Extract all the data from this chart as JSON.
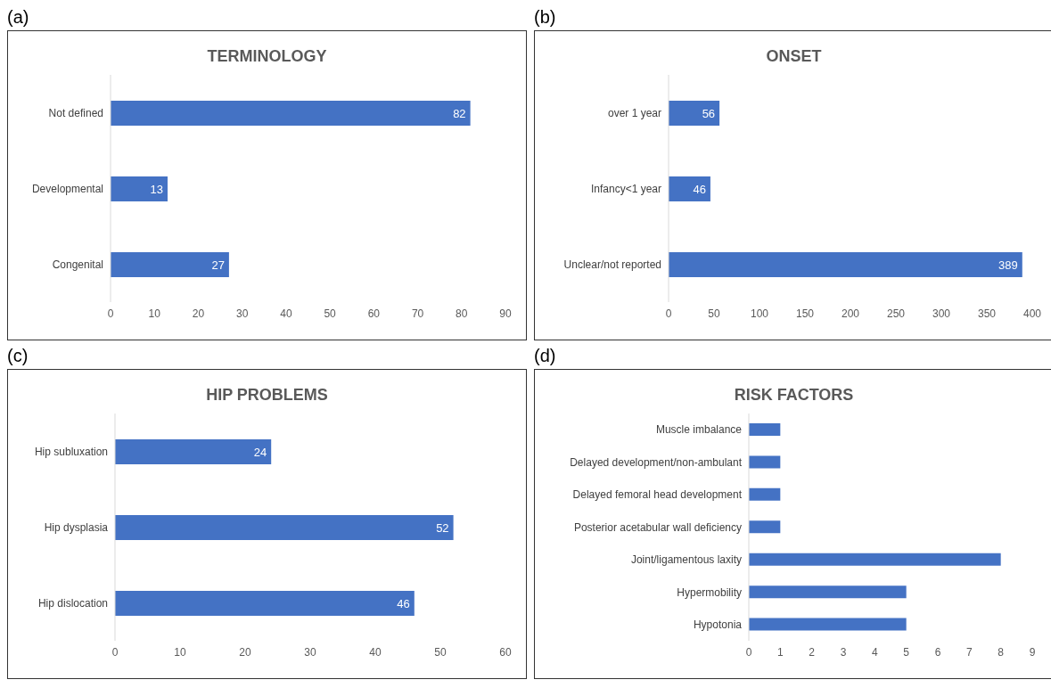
{
  "chart_data": [
    {
      "type": "bar",
      "orientation": "horizontal",
      "title": "TERMINOLOGY",
      "annotations": [
        "(a)"
      ],
      "categories": [
        "Not defined",
        "Developmental",
        "Congenital"
      ],
      "values": [
        82,
        13,
        27
      ],
      "color": "#4472c4",
      "xlim": [
        0,
        90
      ],
      "xticks": [
        0,
        10,
        20,
        30,
        40,
        50,
        60,
        70,
        80,
        90
      ],
      "data_labels": true,
      "grid": false,
      "legend": false
    },
    {
      "type": "bar",
      "orientation": "horizontal",
      "title": "ONSET",
      "annotations": [
        "(b)"
      ],
      "categories": [
        "over 1 year",
        "Infancy<1 year",
        "Unclear/not reported"
      ],
      "values": [
        56,
        46,
        389
      ],
      "color": "#4472c4",
      "xlim": [
        0,
        400
      ],
      "xticks": [
        0,
        50,
        100,
        150,
        200,
        250,
        300,
        350,
        400
      ],
      "data_labels": true,
      "grid": false,
      "legend": false
    },
    {
      "type": "bar",
      "orientation": "horizontal",
      "title": "HIP PROBLEMS",
      "annotations": [
        "(c)"
      ],
      "categories": [
        "Hip subluxation",
        "Hip dysplasia",
        "Hip dislocation"
      ],
      "values": [
        24,
        52,
        46
      ],
      "color": "#4472c4",
      "xlim": [
        0,
        60
      ],
      "xticks": [
        0,
        10,
        20,
        30,
        40,
        50,
        60
      ],
      "data_labels": true,
      "grid": false,
      "legend": false
    },
    {
      "type": "bar",
      "orientation": "horizontal",
      "title": "RISK FACTORS",
      "annotations": [
        "(d)"
      ],
      "categories": [
        "Muscle imbalance",
        "Delayed development/non-ambulant",
        "Delayed femoral head development",
        "Posterior acetabular wall deficiency",
        "Joint/ligamentous laxity",
        "Hypermobility",
        "Hypotonia"
      ],
      "values": [
        1,
        1,
        1,
        1,
        8,
        5,
        5
      ],
      "color": "#4472c4",
      "xlim": [
        0,
        9
      ],
      "xticks": [
        0,
        1,
        2,
        3,
        4,
        5,
        6,
        7,
        8,
        9
      ],
      "grid": false,
      "legend": false
    }
  ]
}
